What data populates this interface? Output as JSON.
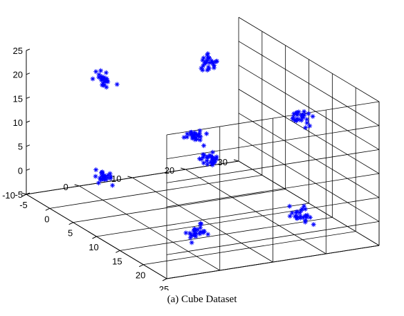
{
  "caption": "(a)  Cube Dataset",
  "chart_data": {
    "type": "scatter",
    "projection": "3d",
    "marker": "*",
    "marker_color": "#0000ff",
    "grid": true,
    "xlim": [
      -5,
      25
    ],
    "ylim": [
      -10,
      30
    ],
    "zlim": [
      -5,
      25
    ],
    "xticks": [
      "-5",
      "0",
      "5",
      "10",
      "15",
      "20",
      "25"
    ],
    "yticks": [
      "-10",
      "0",
      "10",
      "20",
      "30"
    ],
    "zticks": [
      "-5",
      "0",
      "5",
      "10",
      "15",
      "20",
      "25"
    ],
    "clusters": [
      {
        "center": [
          0,
          0,
          0
        ],
        "count": 25
      },
      {
        "center": [
          20,
          0,
          0
        ],
        "count": 25
      },
      {
        "center": [
          0,
          20,
          0
        ],
        "count": 25
      },
      {
        "center": [
          20,
          20,
          0
        ],
        "count": 25
      },
      {
        "center": [
          0,
          0,
          20
        ],
        "count": 25
      },
      {
        "center": [
          20,
          0,
          20
        ],
        "count": 25
      },
      {
        "center": [
          0,
          20,
          20
        ],
        "count": 25
      },
      {
        "center": [
          20,
          20,
          20
        ],
        "count": 25
      }
    ]
  }
}
